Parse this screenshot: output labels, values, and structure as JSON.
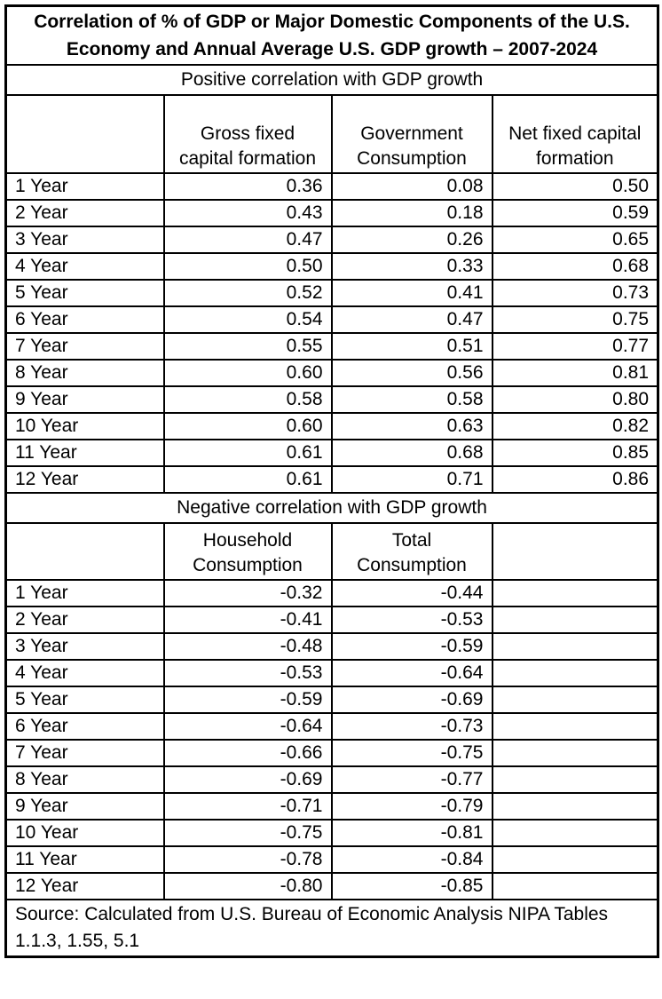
{
  "title": "Correlation of % of GDP or Major Domestic Components of the U.S. Economy and Annual Average U.S. GDP growth – 2007-2024",
  "source": "Source: Calculated from U.S. Bureau of Economic Analysis NIPA Tables 1.1.3, 1.55, 5.1",
  "colors": {
    "text": "#000000",
    "background": "#ffffff",
    "border": "#000000"
  },
  "chart_data": [
    {
      "type": "table",
      "title": "Positive correlation with GDP growth",
      "columns": [
        "",
        "Gross fixed capital formation",
        "Government Consumption",
        "Net fixed capital formation"
      ],
      "rows": [
        [
          "1 Year",
          "0.36",
          "0.08",
          "0.50"
        ],
        [
          "2 Year",
          "0.43",
          "0.18",
          "0.59"
        ],
        [
          "3 Year",
          "0.47",
          "0.26",
          "0.65"
        ],
        [
          "4 Year",
          "0.50",
          "0.33",
          "0.68"
        ],
        [
          "5 Year",
          "0.52",
          "0.41",
          "0.73"
        ],
        [
          "6 Year",
          "0.54",
          "0.47",
          "0.75"
        ],
        [
          "7 Year",
          "0.55",
          "0.51",
          "0.77"
        ],
        [
          "8 Year",
          "0.60",
          "0.56",
          "0.81"
        ],
        [
          "9 Year",
          "0.58",
          "0.58",
          "0.80"
        ],
        [
          "10 Year",
          "0.60",
          "0.63",
          "0.82"
        ],
        [
          "11 Year",
          "0.61",
          "0.68",
          "0.85"
        ],
        [
          "12 Year",
          "0.61",
          "0.71",
          "0.86"
        ]
      ]
    },
    {
      "type": "table",
      "title": "Negative correlation with GDP growth",
      "columns": [
        "",
        "Household Consumption",
        "Total Consumption",
        ""
      ],
      "rows": [
        [
          "1 Year",
          "-0.32",
          "-0.44",
          ""
        ],
        [
          "2 Year",
          "-0.41",
          "-0.53",
          ""
        ],
        [
          "3 Year",
          "-0.48",
          "-0.59",
          ""
        ],
        [
          "4 Year",
          "-0.53",
          "-0.64",
          ""
        ],
        [
          "5 Year",
          "-0.59",
          "-0.69",
          ""
        ],
        [
          "6 Year",
          "-0.64",
          "-0.73",
          ""
        ],
        [
          "7 Year",
          "-0.66",
          "-0.75",
          ""
        ],
        [
          "8 Year",
          "-0.69",
          "-0.77",
          ""
        ],
        [
          "9 Year",
          "-0.71",
          "-0.79",
          ""
        ],
        [
          "10 Year",
          "-0.75",
          "-0.81",
          ""
        ],
        [
          "11 Year",
          "-0.78",
          "-0.84",
          ""
        ],
        [
          "12 Year",
          "-0.80",
          "-0.85",
          ""
        ]
      ]
    }
  ]
}
